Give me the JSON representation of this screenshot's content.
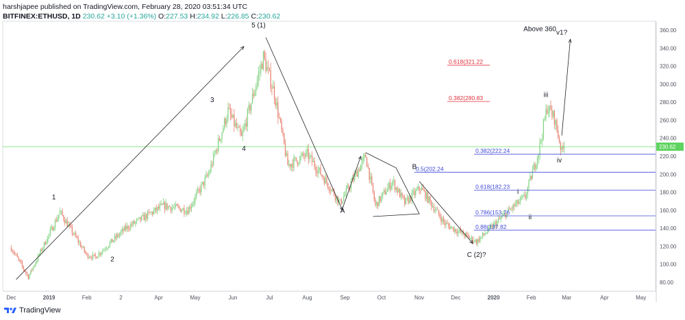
{
  "header": {
    "line1": "harshjapee published on TradingView.com, February 28, 2020 03:51:34 UTC",
    "symbol": "BITFINEX:ETHUSD, 1D",
    "last": "230.62",
    "change": "+3.10 (+1.36%)",
    "o_label": "O:",
    "o": "227.53",
    "h_label": "H:",
    "h": "234.92",
    "l_label": "L:",
    "l": "226.85",
    "c_label": "C:",
    "c": "230.62"
  },
  "footer": {
    "brand": "TradingView"
  },
  "colors": {
    "up": "#7ed27e",
    "down": "#e8806e",
    "fib_red": "#e0303a",
    "fib_blue": "#3f48d8",
    "current_line": "#7ee27e",
    "price_tag": "#5fd35f",
    "line": "#222222"
  },
  "chart_data": {
    "type": "candlestick",
    "symbol": "BITFINEX:ETHUSD",
    "interval": "1D",
    "current_price": 230.62,
    "x_ticks": [
      "Dec",
      "2019",
      "Feb",
      "2",
      "Apr",
      "May",
      "Jun",
      "Jul",
      "Aug",
      "Sep",
      "Oct",
      "Nov",
      "Dec",
      "2020",
      "Feb",
      "Mar",
      "Apr",
      "May"
    ],
    "y_ticks": [
      80,
      100,
      120,
      140,
      160,
      180,
      200,
      220,
      240,
      260,
      280,
      300,
      320,
      340,
      360
    ],
    "ylim": [
      70,
      370
    ],
    "candles_outline": [
      [
        "2018-12-01",
        118
      ],
      [
        "2018-12-15",
        86
      ],
      [
        "2019-01-10",
        158
      ],
      [
        "2019-02-01",
        110
      ],
      [
        "2019-02-08",
        108
      ],
      [
        "2019-03-05",
        140
      ],
      [
        "2019-04-05",
        165
      ],
      [
        "2019-04-25",
        160
      ],
      [
        "2019-05-12",
        200
      ],
      [
        "2019-05-28",
        270
      ],
      [
        "2019-06-08",
        240
      ],
      [
        "2019-06-26",
        330
      ],
      [
        "2019-07-05",
        290
      ],
      [
        "2019-07-16",
        210
      ],
      [
        "2019-08-01",
        222
      ],
      [
        "2019-08-15",
        195
      ],
      [
        "2019-08-28",
        168
      ],
      [
        "2019-09-18",
        220
      ],
      [
        "2019-09-26",
        165
      ],
      [
        "2019-10-10",
        192
      ],
      [
        "2019-10-20",
        168
      ],
      [
        "2019-11-02",
        185
      ],
      [
        "2019-11-22",
        145
      ],
      [
        "2019-12-18",
        125
      ],
      [
        "2020-01-14",
        160
      ],
      [
        "2020-01-27",
        175
      ],
      [
        "2020-02-07",
        225
      ],
      [
        "2020-02-14",
        275
      ],
      [
        "2020-02-20",
        262
      ],
      [
        "2020-02-26",
        225
      ],
      [
        "2020-02-28",
        230.62
      ]
    ],
    "wave_labels": [
      {
        "text": "5 (1)",
        "date": "2019-06-22",
        "price": 363
      },
      {
        "text": "1",
        "date": "2019-01-05",
        "price": 172
      },
      {
        "text": "2",
        "date": "2019-02-22",
        "price": 103
      },
      {
        "text": "3",
        "date": "2019-05-15",
        "price": 280
      },
      {
        "text": "4",
        "date": "2019-06-10",
        "price": 226
      },
      {
        "text": "A",
        "date": "2019-08-30",
        "price": 157
      },
      {
        "text": "B",
        "date": "2019-10-28",
        "price": 206
      },
      {
        "text": "C (2)?",
        "date": "2019-12-18",
        "price": 108
      },
      {
        "text": "i",
        "date": "2020-01-21",
        "price": 178
      },
      {
        "text": "ii",
        "date": "2020-01-31",
        "price": 150
      },
      {
        "text": "iii",
        "date": "2020-02-13",
        "price": 286
      },
      {
        "text": "iv",
        "date": "2020-02-24",
        "price": 213
      },
      {
        "text": "Above 360",
        "date": "2020-02-08",
        "price": 359
      },
      {
        "text": "v1?",
        "date": "2020-02-26",
        "price": 355
      }
    ],
    "fib_levels": [
      {
        "label": "0.618(321.22",
        "value": 321.22,
        "color": "red"
      },
      {
        "label": "0.382(280.83",
        "value": 280.83,
        "color": "red"
      },
      {
        "label": "0.382(222.24",
        "value": 222.24,
        "color": "blue"
      },
      {
        "label": "0.5(202.24",
        "value": 202.24,
        "color": "blue"
      },
      {
        "label": "0.618(182.23",
        "value": 182.23,
        "color": "blue"
      },
      {
        "label": "0.786(153.76",
        "value": 153.76,
        "color": "blue"
      },
      {
        "label": "0.88(137.82",
        "value": 137.82,
        "color": "blue"
      }
    ],
    "trend_arrows": [
      {
        "from": [
          "2018-12-05",
          83
        ],
        "to": [
          "2019-06-10",
          342
        ]
      },
      {
        "from": [
          "2019-06-28",
          352
        ],
        "to": [
          "2019-08-30",
          160
        ]
      },
      {
        "from": [
          "2019-08-30",
          162
        ],
        "to": [
          "2019-09-14",
          220
        ]
      },
      {
        "from": [
          "2019-11-01",
          192
        ],
        "to": [
          "2019-12-15",
          123
        ]
      },
      {
        "from": [
          "2020-02-26",
          243
        ],
        "to": [
          "2020-03-04",
          350
        ]
      }
    ],
    "triangle": {
      "points": [
        [
          "2019-09-18",
          224
        ],
        [
          "2019-10-13",
          207
        ],
        [
          "2019-11-01",
          156
        ],
        [
          "2019-09-24",
          153
        ]
      ]
    }
  }
}
